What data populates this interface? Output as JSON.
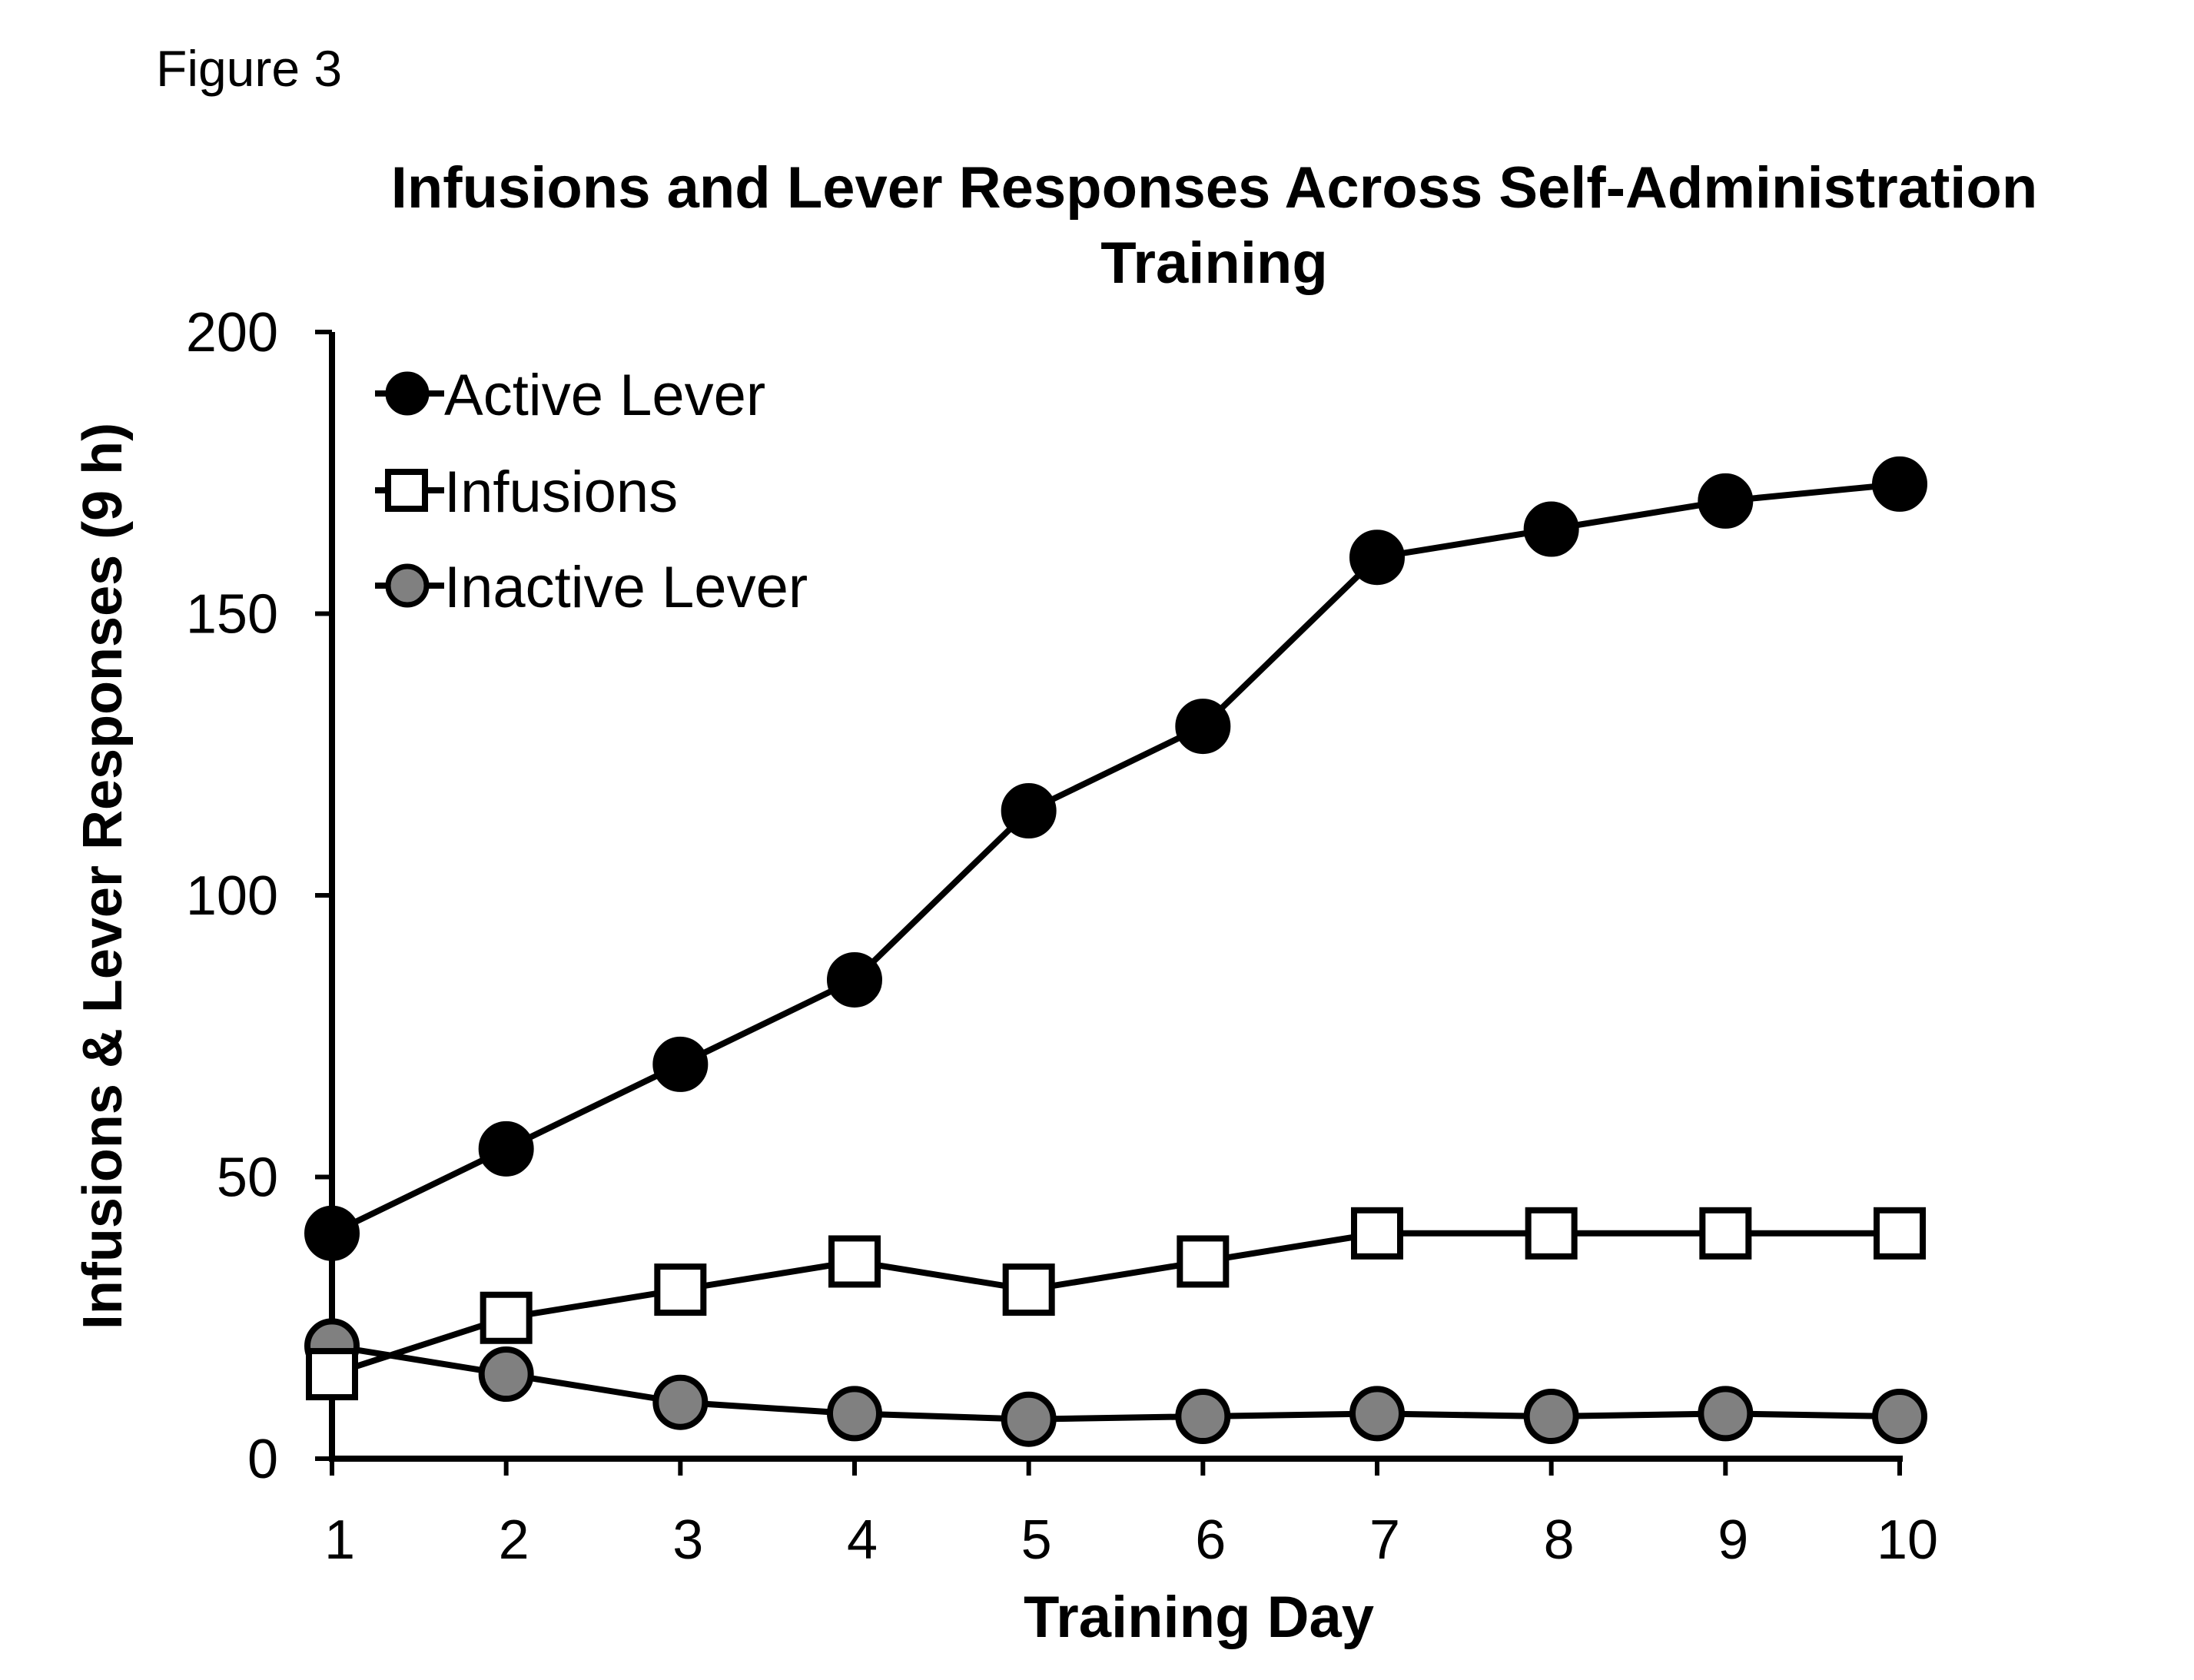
{
  "figure_label": "Figure 3",
  "chart_data": {
    "type": "line",
    "title_lines": [
      "Infusions and Lever Responses Across Self-Administration",
      "Training"
    ],
    "xlabel": "Training Day",
    "ylabel": "Infusions & Lever Responses (9 h)",
    "x": [
      1,
      2,
      3,
      4,
      5,
      6,
      7,
      8,
      9,
      10
    ],
    "xticks": [
      "1",
      "2",
      "3",
      "4",
      "5",
      "6",
      "7",
      "8",
      "9",
      "10"
    ],
    "ylim": [
      0,
      200
    ],
    "yticks": [
      "0",
      "50",
      "100",
      "150",
      "200"
    ],
    "legend_position": "top-left",
    "series": [
      {
        "name": "Active Lever",
        "marker": "circle",
        "fill": "#000000",
        "values": [
          40,
          55,
          70,
          85,
          115,
          130,
          160,
          165,
          170,
          173
        ]
      },
      {
        "name": "Infusions",
        "marker": "square",
        "fill": "#ffffff",
        "values": [
          15,
          25,
          30,
          35,
          30,
          35,
          40,
          40,
          40,
          40
        ]
      },
      {
        "name": "Inactive Lever",
        "marker": "circle",
        "fill": "#808080",
        "values": [
          20,
          15,
          10,
          8,
          7,
          7.5,
          8,
          7.5,
          8,
          7.5
        ]
      }
    ]
  }
}
